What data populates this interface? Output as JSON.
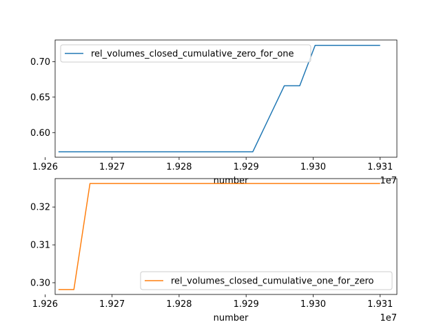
{
  "chart_data": [
    {
      "type": "line",
      "xlabel": "number",
      "x_offset_label": "1e7",
      "xlim": [
        1.92615,
        1.93125
      ],
      "ylim": [
        0.5653,
        0.7305
      ],
      "xticks": [
        1.926,
        1.927,
        1.928,
        1.929,
        1.93,
        1.931
      ],
      "xtick_labels": [
        "1.926",
        "1.927",
        "1.928",
        "1.929",
        "1.930",
        "1.931"
      ],
      "yticks": [
        0.6,
        0.65,
        0.7
      ],
      "ytick_labels": [
        "0.60",
        "0.65",
        "0.70"
      ],
      "legend_position": "top-left",
      "series": [
        {
          "name": "rel_volumes_closed_cumulative_zero_for_one",
          "color": "#1f77b4",
          "x": [
            1.9262,
            1.9291,
            1.92957,
            1.9298,
            1.93003,
            1.931
          ],
          "y": [
            0.573,
            0.573,
            0.666,
            0.666,
            0.723,
            0.723
          ]
        }
      ]
    },
    {
      "type": "line",
      "xlabel": "number",
      "x_offset_label": "1e7",
      "xlim": [
        1.92615,
        1.93125
      ],
      "ylim": [
        0.2969,
        0.3275
      ],
      "xticks": [
        1.926,
        1.927,
        1.928,
        1.929,
        1.93,
        1.931
      ],
      "xtick_labels": [
        "1.926",
        "1.927",
        "1.928",
        "1.929",
        "1.930",
        "1.931"
      ],
      "yticks": [
        0.3,
        0.31,
        0.32
      ],
      "ytick_labels": [
        "0.30",
        "0.31",
        "0.32"
      ],
      "legend_position": "bottom-right",
      "series": [
        {
          "name": "rel_volumes_closed_cumulative_one_for_zero",
          "color": "#ff7f0e",
          "x": [
            1.9262,
            1.92643,
            1.92667,
            1.931
          ],
          "y": [
            0.2982,
            0.2982,
            0.3262,
            0.3262
          ]
        }
      ]
    }
  ]
}
